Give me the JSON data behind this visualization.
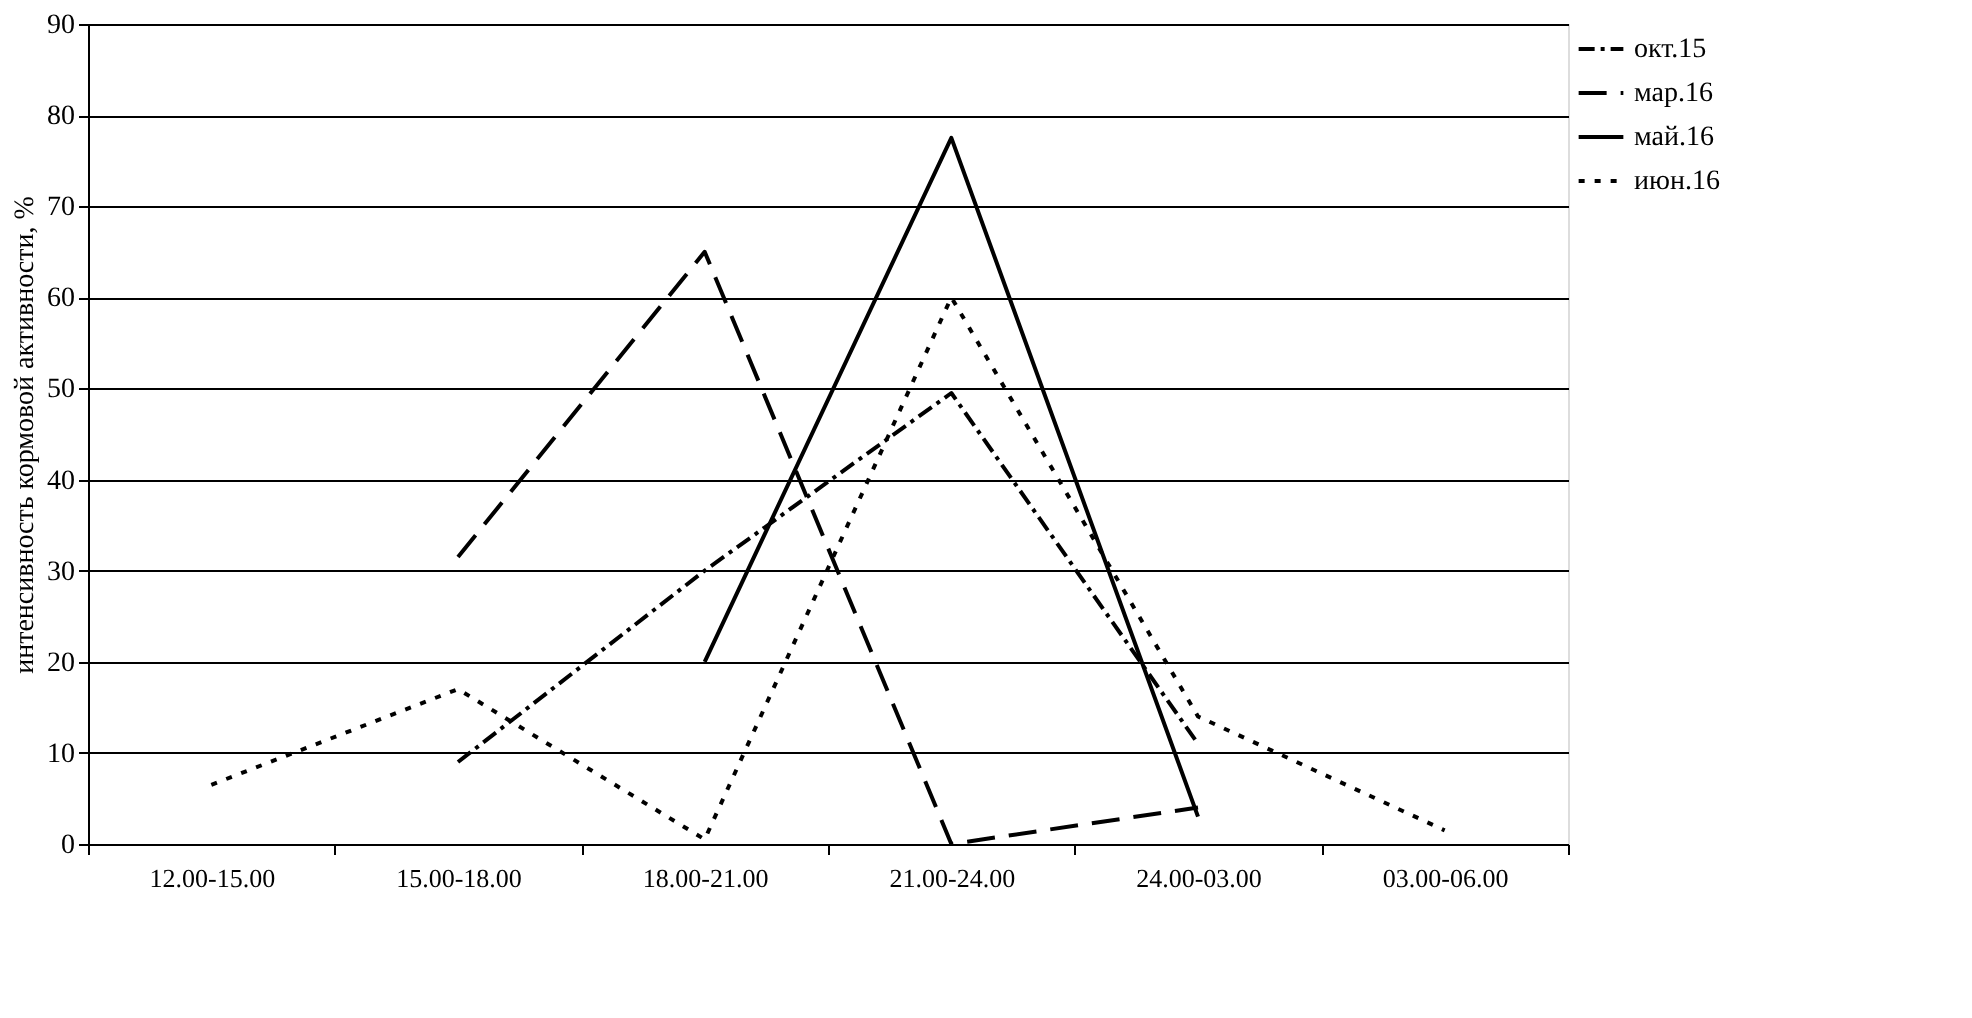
{
  "chart_data": {
    "type": "line",
    "ylabel": "интенсивность кормовой активности, %",
    "categories": [
      "12.00-15.00",
      "15.00-18.00",
      "18.00-21.00",
      "21.00-24.00",
      "24.00-03.00",
      "03.00-06.00"
    ],
    "series": [
      {
        "name": "окт.15",
        "color": "#000000",
        "line_style": "dashdot",
        "values": [
          null,
          9,
          30,
          49.5,
          11,
          null
        ]
      },
      {
        "name": "мар.16",
        "color": "#000000",
        "line_style": "dashed",
        "values": [
          null,
          31.5,
          65,
          0,
          4,
          null
        ]
      },
      {
        "name": "май.16",
        "color": "#000000",
        "line_style": "solid",
        "values": [
          null,
          null,
          20,
          77.5,
          3,
          null
        ]
      },
      {
        "name": "июн.16",
        "color": "#000000",
        "line_style": "dotted",
        "values": [
          6.5,
          17,
          0.5,
          60,
          14,
          1.5
        ]
      }
    ],
    "ylim": [
      0,
      90
    ],
    "yticks": [
      0,
      10,
      20,
      30,
      40,
      50,
      60,
      70,
      80,
      90
    ],
    "grid": "y",
    "legend": "right",
    "marker": "none"
  }
}
